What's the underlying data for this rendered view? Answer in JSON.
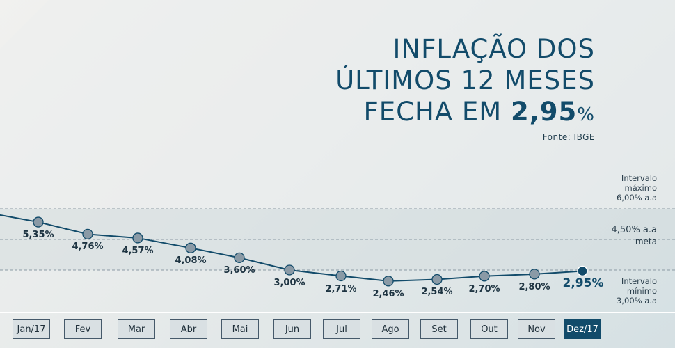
{
  "title": {
    "line1": "INFLAÇÃO DOS",
    "line2": "ÚLTIMOS 12 MESES",
    "line3_prefix": "FECHA EM",
    "value": "2,95",
    "unit": "%"
  },
  "source": "Fonte: IBGE",
  "reference": {
    "max": {
      "line1": "Intervalo",
      "line2": "máximo",
      "line3": "6,00% a.a"
    },
    "target": {
      "value": "4,50% a.a",
      "name": "meta"
    },
    "min": {
      "line1": "Intervalo",
      "line2": "mínimo",
      "line3": "3,00% a.a"
    }
  },
  "colors": {
    "accent": "#124b6a",
    "line": "#124b6a",
    "marker": "#8a9aa6",
    "band": "#d4dcdf"
  },
  "chart_data": {
    "type": "line",
    "categories": [
      "Jan/17",
      "Fev",
      "Mar",
      "Abr",
      "Mai",
      "Jun",
      "Jul",
      "Ago",
      "Set",
      "Out",
      "Nov",
      "Dez/17"
    ],
    "values": [
      5.35,
      4.76,
      4.57,
      4.08,
      3.6,
      3.0,
      2.71,
      2.46,
      2.54,
      2.7,
      2.8,
      2.95
    ],
    "labels": [
      "5,35%",
      "4,76%",
      "4,57%",
      "4,08%",
      "3,60%",
      "3,00%",
      "2,71%",
      "2,46%",
      "2,54%",
      "2,70%",
      "2,80%",
      "2,95%"
    ],
    "highlight_index": 11,
    "reference_lines": {
      "max": 6.0,
      "target": 4.5,
      "min": 3.0
    },
    "grid": false,
    "legend": "none"
  }
}
